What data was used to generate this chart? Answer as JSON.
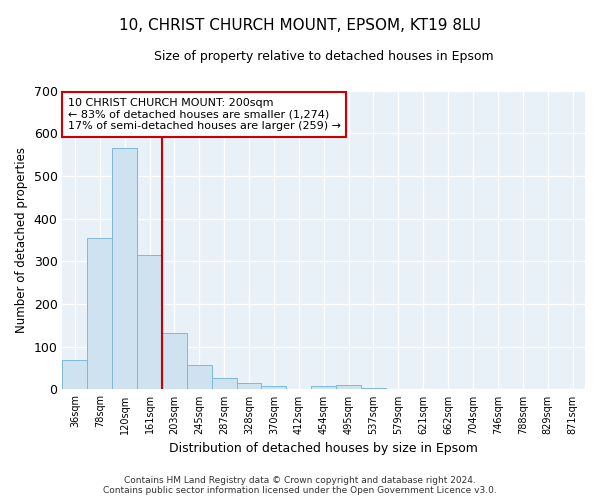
{
  "title_line1": "10, CHRIST CHURCH MOUNT, EPSOM, KT19 8LU",
  "title_line2": "Size of property relative to detached houses in Epsom",
  "xlabel": "Distribution of detached houses by size in Epsom",
  "ylabel": "Number of detached properties",
  "bar_labels": [
    "36sqm",
    "78sqm",
    "120sqm",
    "161sqm",
    "203sqm",
    "245sqm",
    "287sqm",
    "328sqm",
    "370sqm",
    "412sqm",
    "454sqm",
    "495sqm",
    "537sqm",
    "579sqm",
    "621sqm",
    "662sqm",
    "704sqm",
    "746sqm",
    "788sqm",
    "829sqm",
    "871sqm"
  ],
  "bar_values": [
    68,
    354,
    565,
    315,
    132,
    57,
    27,
    14,
    8,
    0,
    8,
    10,
    4,
    0,
    0,
    0,
    0,
    0,
    0,
    0,
    0
  ],
  "bar_color": "#cfe2f0",
  "bar_edge_color": "#7fb9d8",
  "vline_color": "#cc0000",
  "ylim": [
    0,
    700
  ],
  "yticks": [
    0,
    100,
    200,
    300,
    400,
    500,
    600,
    700
  ],
  "annotation_text": "10 CHRIST CHURCH MOUNT: 200sqm\n← 83% of detached houses are smaller (1,274)\n17% of semi-detached houses are larger (259) →",
  "annotation_box_color": "white",
  "annotation_box_edge": "#cc0000",
  "footer_line1": "Contains HM Land Registry data © Crown copyright and database right 2024.",
  "footer_line2": "Contains public sector information licensed under the Open Government Licence v3.0.",
  "bg_color": "#ffffff",
  "plot_bg_color": "#e8f0f8",
  "grid_color": "white"
}
